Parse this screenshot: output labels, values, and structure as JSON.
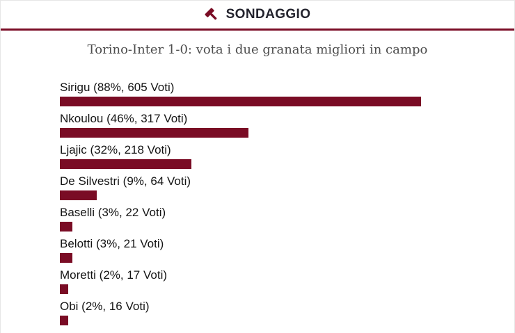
{
  "widget": {
    "header": {
      "label": "SONDAGGIO"
    },
    "poll": {
      "question": "Torino-Inter 1-0: vota i due granata migliori in campo",
      "options": [
        {
          "player": "Sirigu",
          "percent": 88,
          "votes": 605,
          "label": "Sirigu (88%, 605 Voti)"
        },
        {
          "player": "Nkoulou",
          "percent": 46,
          "votes": 317,
          "label": "Nkoulou (46%, 317 Voti)"
        },
        {
          "player": "Ljajic",
          "percent": 32,
          "votes": 218,
          "label": "Ljajic (32%, 218 Voti)"
        },
        {
          "player": "De Silvestri",
          "percent": 9,
          "votes": 64,
          "label": "De Silvestri (9%, 64 Voti)"
        },
        {
          "player": "Baselli",
          "percent": 3,
          "votes": 22,
          "label": "Baselli (3%, 22 Voti)"
        },
        {
          "player": "Belotti",
          "percent": 3,
          "votes": 21,
          "label": "Belotti (3%, 21 Voti)"
        },
        {
          "player": "Moretti",
          "percent": 2,
          "votes": 17,
          "label": "Moretti (2%, 17 Voti)"
        },
        {
          "player": "Obi",
          "percent": 2,
          "votes": 16,
          "label": "Obi (2%, 16 Voti)"
        }
      ]
    }
  },
  "icons": {
    "header_icon": "gavel-icon"
  },
  "colors": {
    "accent_maroon": "#7a0c25",
    "header_text": "#23232d",
    "title_text": "#4d4d4d",
    "label_text": "#141414",
    "frame_border": "#e6e6e6"
  },
  "chart_data": {
    "type": "bar",
    "orientation": "horizontal",
    "title": "Torino-Inter 1-0: vota i due granata migliori in campo",
    "categories": [
      "Sirigu",
      "Nkoulou",
      "Ljajic",
      "De Silvestri",
      "Baselli",
      "Belotti",
      "Moretti",
      "Obi"
    ],
    "series": [
      {
        "name": "percent",
        "values": [
          88,
          46,
          32,
          9,
          3,
          3,
          2,
          2
        ]
      },
      {
        "name": "votes",
        "values": [
          605,
          317,
          218,
          64,
          22,
          21,
          17,
          16
        ]
      }
    ],
    "data_labels": [
      "Sirigu (88%, 605 Voti)",
      "Nkoulou (46%, 317 Voti)",
      "Ljajic (32%, 218 Voti)",
      "De Silvestri (9%, 64 Voti)",
      "Baselli (3%, 22 Voti)",
      "Belotti (3%, 21 Voti)",
      "Moretti (2%, 17 Voti)",
      "Obi (2%, 16 Voti)"
    ],
    "xlim": [
      0,
      100
    ],
    "grid": false,
    "legend": false,
    "bar_color": "#7a0c25"
  }
}
